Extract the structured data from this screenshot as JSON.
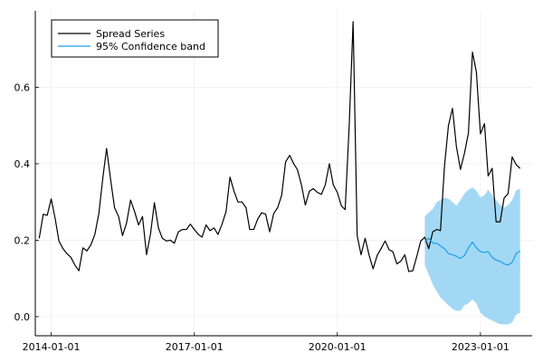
{
  "chart_data": {
    "type": "line",
    "title": "",
    "xlabel": "",
    "ylabel": "",
    "x_axis": {
      "type": "date",
      "range": [
        "2013-09-01",
        "2024-02-01"
      ],
      "ticks": [
        {
          "value": "2014-01-01",
          "label": "2014-01-01"
        },
        {
          "value": "2017-01-01",
          "label": "2017-01-01"
        },
        {
          "value": "2020-01-01",
          "label": "2020-01-01"
        },
        {
          "value": "2023-01-01",
          "label": "2023-01-01"
        }
      ]
    },
    "y_axis": {
      "range": [
        -0.05,
        0.8
      ],
      "ticks": [
        {
          "value": 0.0,
          "label": "0.0"
        },
        {
          "value": 0.2,
          "label": "0.2"
        },
        {
          "value": 0.4,
          "label": "0.4"
        },
        {
          "value": 0.6,
          "label": "0.6"
        }
      ]
    },
    "grid": true,
    "legend": {
      "position": "top-left",
      "entries": [
        {
          "label": "Spread Series",
          "color": "#000000",
          "kind": "line"
        },
        {
          "label": "95% Confidence band",
          "color": "#1aa0e8",
          "kind": "line"
        }
      ]
    },
    "series": [
      {
        "name": "Spread Series",
        "color": "#000000",
        "points": [
          [
            "2013-10-01",
            0.205
          ],
          [
            "2013-11-01",
            0.268
          ],
          [
            "2013-12-01",
            0.265
          ],
          [
            "2014-01-01",
            0.308
          ],
          [
            "2014-02-01",
            0.255
          ],
          [
            "2014-03-01",
            0.198
          ],
          [
            "2014-04-01",
            0.178
          ],
          [
            "2014-05-01",
            0.165
          ],
          [
            "2014-06-01",
            0.155
          ],
          [
            "2014-07-01",
            0.135
          ],
          [
            "2014-08-01",
            0.12
          ],
          [
            "2014-09-01",
            0.18
          ],
          [
            "2014-10-01",
            0.172
          ],
          [
            "2014-11-01",
            0.188
          ],
          [
            "2014-12-01",
            0.215
          ],
          [
            "2015-01-01",
            0.27
          ],
          [
            "2015-02-01",
            0.365
          ],
          [
            "2015-03-01",
            0.44
          ],
          [
            "2015-04-01",
            0.358
          ],
          [
            "2015-05-01",
            0.285
          ],
          [
            "2015-06-01",
            0.262
          ],
          [
            "2015-07-01",
            0.212
          ],
          [
            "2015-08-01",
            0.245
          ],
          [
            "2015-09-01",
            0.305
          ],
          [
            "2015-10-01",
            0.275
          ],
          [
            "2015-11-01",
            0.24
          ],
          [
            "2015-12-01",
            0.262
          ],
          [
            "2016-01-01",
            0.162
          ],
          [
            "2016-02-01",
            0.218
          ],
          [
            "2016-03-01",
            0.298
          ],
          [
            "2016-04-01",
            0.232
          ],
          [
            "2016-05-01",
            0.205
          ],
          [
            "2016-06-01",
            0.198
          ],
          [
            "2016-07-01",
            0.2
          ],
          [
            "2016-08-01",
            0.192
          ],
          [
            "2016-09-01",
            0.222
          ],
          [
            "2016-10-01",
            0.228
          ],
          [
            "2016-11-01",
            0.228
          ],
          [
            "2016-12-01",
            0.242
          ],
          [
            "2017-01-01",
            0.228
          ],
          [
            "2017-02-01",
            0.215
          ],
          [
            "2017-03-01",
            0.208
          ],
          [
            "2017-04-01",
            0.24
          ],
          [
            "2017-05-01",
            0.225
          ],
          [
            "2017-06-01",
            0.232
          ],
          [
            "2017-07-01",
            0.215
          ],
          [
            "2017-08-01",
            0.242
          ],
          [
            "2017-09-01",
            0.275
          ],
          [
            "2017-10-01",
            0.365
          ],
          [
            "2017-11-01",
            0.328
          ],
          [
            "2017-12-01",
            0.3
          ],
          [
            "2018-01-01",
            0.3
          ],
          [
            "2018-02-01",
            0.285
          ],
          [
            "2018-03-01",
            0.228
          ],
          [
            "2018-04-01",
            0.228
          ],
          [
            "2018-05-01",
            0.255
          ],
          [
            "2018-06-01",
            0.272
          ],
          [
            "2018-07-01",
            0.268
          ],
          [
            "2018-08-01",
            0.222
          ],
          [
            "2018-09-01",
            0.27
          ],
          [
            "2018-10-01",
            0.285
          ],
          [
            "2018-11-01",
            0.318
          ],
          [
            "2018-12-01",
            0.405
          ],
          [
            "2019-01-01",
            0.422
          ],
          [
            "2019-02-01",
            0.4
          ],
          [
            "2019-03-01",
            0.385
          ],
          [
            "2019-04-01",
            0.345
          ],
          [
            "2019-05-01",
            0.292
          ],
          [
            "2019-06-01",
            0.328
          ],
          [
            "2019-07-01",
            0.335
          ],
          [
            "2019-08-01",
            0.325
          ],
          [
            "2019-09-01",
            0.32
          ],
          [
            "2019-10-01",
            0.345
          ],
          [
            "2019-11-01",
            0.4
          ],
          [
            "2019-12-01",
            0.345
          ],
          [
            "2020-01-01",
            0.325
          ],
          [
            "2020-02-01",
            0.29
          ],
          [
            "2020-03-01",
            0.28
          ],
          [
            "2020-04-01",
            0.5
          ],
          [
            "2020-05-01",
            0.772
          ],
          [
            "2020-06-01",
            0.212
          ],
          [
            "2020-07-01",
            0.162
          ],
          [
            "2020-08-01",
            0.205
          ],
          [
            "2020-09-01",
            0.16
          ],
          [
            "2020-10-01",
            0.125
          ],
          [
            "2020-11-01",
            0.16
          ],
          [
            "2020-12-01",
            0.178
          ],
          [
            "2021-01-01",
            0.198
          ],
          [
            "2021-02-01",
            0.175
          ],
          [
            "2021-03-01",
            0.17
          ],
          [
            "2021-04-01",
            0.138
          ],
          [
            "2021-05-01",
            0.145
          ],
          [
            "2021-06-01",
            0.162
          ],
          [
            "2021-07-01",
            0.118
          ],
          [
            "2021-08-01",
            0.12
          ],
          [
            "2021-09-01",
            0.158
          ],
          [
            "2021-10-01",
            0.198
          ],
          [
            "2021-11-01",
            0.208
          ],
          [
            "2021-12-01",
            0.178
          ],
          [
            "2022-01-01",
            0.222
          ],
          [
            "2022-02-01",
            0.228
          ],
          [
            "2022-03-01",
            0.225
          ],
          [
            "2022-04-01",
            0.395
          ],
          [
            "2022-05-01",
            0.5
          ],
          [
            "2022-06-01",
            0.545
          ],
          [
            "2022-07-01",
            0.445
          ],
          [
            "2022-08-01",
            0.385
          ],
          [
            "2022-09-01",
            0.428
          ],
          [
            "2022-10-01",
            0.48
          ],
          [
            "2022-11-01",
            0.692
          ],
          [
            "2022-12-01",
            0.64
          ],
          [
            "2023-01-01",
            0.478
          ],
          [
            "2023-02-01",
            0.505
          ],
          [
            "2023-03-01",
            0.368
          ],
          [
            "2023-04-01",
            0.388
          ],
          [
            "2023-05-01",
            0.248
          ],
          [
            "2023-06-01",
            0.248
          ],
          [
            "2023-07-01",
            0.31
          ],
          [
            "2023-08-01",
            0.322
          ],
          [
            "2023-09-01",
            0.418
          ],
          [
            "2023-10-01",
            0.398
          ],
          [
            "2023-11-01",
            0.388
          ]
        ]
      },
      {
        "name": "95% Confidence band",
        "color": "#1aa0e8",
        "band_color": "#a3d8f5",
        "points": [
          [
            "2021-11-01",
            0.195,
            0.135,
            0.262
          ],
          [
            "2021-12-01",
            0.205,
            0.11,
            0.272
          ],
          [
            "2022-01-01",
            0.192,
            0.085,
            0.282
          ],
          [
            "2022-02-01",
            0.192,
            0.065,
            0.3
          ],
          [
            "2022-03-01",
            0.185,
            0.05,
            0.305
          ],
          [
            "2022-04-01",
            0.178,
            0.04,
            0.312
          ],
          [
            "2022-05-01",
            0.165,
            0.03,
            0.308
          ],
          [
            "2022-06-01",
            0.162,
            0.02,
            0.3
          ],
          [
            "2022-07-01",
            0.158,
            0.015,
            0.29
          ],
          [
            "2022-08-01",
            0.152,
            0.015,
            0.305
          ],
          [
            "2022-09-01",
            0.16,
            0.03,
            0.322
          ],
          [
            "2022-10-01",
            0.18,
            0.035,
            0.332
          ],
          [
            "2022-11-01",
            0.195,
            0.045,
            0.338
          ],
          [
            "2022-12-01",
            0.18,
            0.035,
            0.33
          ],
          [
            "2023-01-01",
            0.17,
            0.01,
            0.312
          ],
          [
            "2023-02-01",
            0.168,
            0.0,
            0.318
          ],
          [
            "2023-03-01",
            0.17,
            -0.005,
            0.332
          ],
          [
            "2023-04-01",
            0.155,
            -0.01,
            0.318
          ],
          [
            "2023-05-01",
            0.148,
            -0.015,
            0.305
          ],
          [
            "2023-06-01",
            0.145,
            -0.02,
            0.292
          ],
          [
            "2023-07-01",
            0.138,
            -0.02,
            0.285
          ],
          [
            "2023-08-01",
            0.135,
            -0.02,
            0.292
          ],
          [
            "2023-09-01",
            0.142,
            -0.015,
            0.305
          ],
          [
            "2023-10-01",
            0.165,
            0.005,
            0.33
          ],
          [
            "2023-11-01",
            0.172,
            0.01,
            0.335
          ]
        ]
      }
    ]
  }
}
